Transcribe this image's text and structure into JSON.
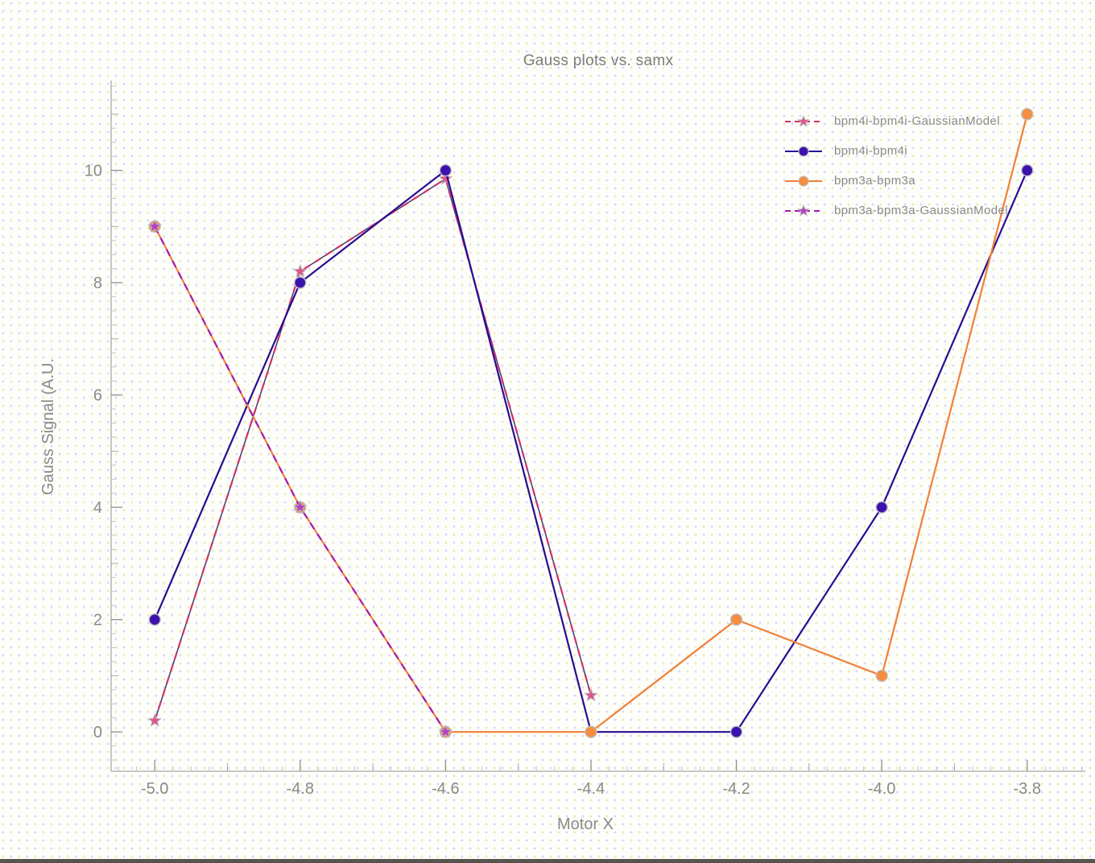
{
  "window": {
    "background_dot_colors": [
      "#cdcd46",
      "#9696eb"
    ],
    "bottom_bar_color": "#56554d"
  },
  "chart_data": {
    "type": "line",
    "title": "Gauss plots vs. samx",
    "xlabel": "Motor X",
    "ylabel": "Gauss Signal (A.U.",
    "xlim": [
      -5.06,
      -3.72
    ],
    "ylim": [
      -0.7,
      11.6
    ],
    "grid": "off",
    "legend_position": "top-right",
    "x_tick_values": [
      -5.0,
      -4.8,
      -4.6,
      -4.4,
      -4.2,
      -4.0,
      -3.8
    ],
    "x_tick_labels": [
      "-5.0",
      "-4.8",
      "-4.6",
      "-4.4",
      "-4.2",
      "-4.0",
      "-3.8"
    ],
    "x_minor_step": 0.025,
    "x_mid_step": 0.1,
    "y_tick_values": [
      0,
      2,
      4,
      6,
      8,
      10
    ],
    "y_tick_labels": [
      "0",
      "2",
      "4",
      "6",
      "8",
      "10"
    ],
    "y_minor_step": 0.25,
    "y_mid_step": 1.0,
    "axis_color": "#a9a9a9",
    "tick_text_color": "#8a8a8a",
    "series": [
      {
        "name": "bpm4i-bpm4i-GaussianModel",
        "line_style": "dashed",
        "marker": "star",
        "color": "#cf3168",
        "marker_fill": "#e0558c",
        "underlay_color": "#3c3c6e",
        "x": [
          -5.0,
          -4.8,
          -4.6,
          -4.4
        ],
        "y": [
          0.2,
          8.2,
          9.85,
          0.65
        ]
      },
      {
        "name": "bpm4i-bpm4i",
        "line_style": "solid",
        "marker": "circle",
        "color": "#2a0c92",
        "marker_fill": "#3b12ae",
        "x": [
          -5.0,
          -4.8,
          -4.6,
          -4.4,
          -4.2,
          -4.0,
          -3.8
        ],
        "y": [
          2,
          8,
          10,
          0,
          0,
          4,
          10
        ]
      },
      {
        "name": "bpm3a-bpm3a",
        "line_style": "solid",
        "marker": "circle",
        "color": "#f0813a",
        "marker_fill": "#f68d3f",
        "x": [
          -5.0,
          -4.8,
          -4.6,
          -4.4,
          -4.2,
          -4.0,
          -3.8
        ],
        "y": [
          9,
          4,
          0,
          0,
          2,
          1,
          11
        ]
      },
      {
        "name": "bpm3a-bpm3a-GaussianModel",
        "line_style": "dashed",
        "marker": "star",
        "color": "#a21caf",
        "marker_fill": "#b53ec1",
        "x": [
          -5.0,
          -4.8,
          -4.6
        ],
        "y": [
          9,
          4,
          0
        ]
      }
    ]
  }
}
